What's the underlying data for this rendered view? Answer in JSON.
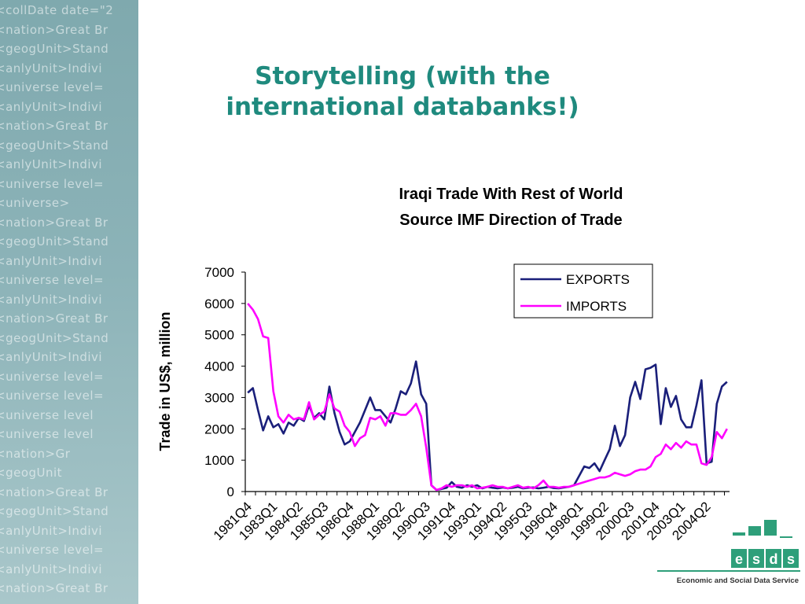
{
  "slide": {
    "title_line1": "Storytelling (with the",
    "title_line2": "international databanks!)",
    "background_code_lines": [
      "<collDate date=\"2",
      "<nation>Great Br",
      "<geogUnit>Stand",
      "<anlyUnit>Indivi",
      "<universe level=",
      "<anlyUnit>Indivi",
      "<nation>Great Br",
      "<geogUnit>Stand",
      "<anlyUnit>Indivi",
      "<universe level=",
      "<universe>",
      "<nation>Great Br",
      "<geogUnit>Stand",
      "<anlyUnit>Indivi",
      "<universe level=",
      "<anlyUnit>Indivi",
      "<nation>Great Br",
      "<geogUnit>Stand",
      "<anlyUnit>Indivi",
      "<universe level=",
      "<universe level=",
      "<universe level",
      "<universe level",
      "<nation>Gr",
      "<geogUnit",
      "<nation>Great Br",
      "<geogUnit>Stand",
      "<anlyUnit>Indivi",
      "<universe level=",
      "<anlyUnit>Indivi",
      "<nation>Great Br"
    ]
  },
  "colors": {
    "title": "#1f8a7e",
    "exports": "#1a1f7a",
    "imports": "#ff00ff",
    "logo_green": "#2e9f7a"
  },
  "logo": {
    "letters": [
      "e",
      "s",
      "d",
      "s"
    ],
    "caption": "Economic and Social Data Service"
  },
  "chart_data": {
    "type": "line",
    "title": "Iraqi Trade With Rest of World",
    "subtitle": "Source IMF Direction of Trade",
    "xlabel": "",
    "ylabel": "Trade in US$, million",
    "ylim": [
      0,
      7000
    ],
    "yticks": [
      0,
      1000,
      2000,
      3000,
      4000,
      5000,
      6000,
      7000
    ],
    "grid": false,
    "legend": "top-right",
    "x_start": "1981Q4",
    "x_tick_labels": [
      "1981Q4",
      "1983Q1",
      "1984Q2",
      "1985Q3",
      "1986Q4",
      "1988Q1",
      "1989Q2",
      "1990Q3",
      "1991Q4",
      "1993Q1",
      "1994Q2",
      "1995Q3",
      "1996Q4",
      "1998Q1",
      "1999Q2",
      "2000Q3",
      "2001Q4",
      "2003Q1",
      "2004Q2"
    ],
    "series": [
      {
        "name": "EXPORTS",
        "values": [
          3150,
          3300,
          2600,
          1950,
          2400,
          2050,
          2150,
          1850,
          2200,
          2100,
          2350,
          2250,
          2750,
          2350,
          2500,
          2300,
          3350,
          2500,
          1900,
          1500,
          1600,
          1900,
          2200,
          2600,
          3000,
          2600,
          2600,
          2400,
          2200,
          2650,
          3200,
          3100,
          3450,
          4150,
          3100,
          2800,
          200,
          50,
          80,
          120,
          300,
          150,
          120,
          200,
          150,
          200,
          100,
          150,
          120,
          100,
          130,
          100,
          120,
          150,
          100,
          120,
          130,
          100,
          120,
          150,
          110,
          100,
          130,
          150,
          200,
          500,
          800,
          750,
          900,
          650,
          1000,
          1350,
          2100,
          1450,
          1800,
          3000,
          3500,
          2950,
          3900,
          3950,
          4050,
          2150,
          3300,
          2700,
          3050,
          2300,
          2050,
          2050,
          2750,
          3550,
          900,
          950,
          2800,
          3350,
          3500
        ]
      },
      {
        "name": "IMPORTS",
        "values": [
          6000,
          5800,
          5500,
          4950,
          4900,
          3200,
          2400,
          2200,
          2450,
          2300,
          2350,
          2300,
          2850,
          2300,
          2450,
          2550,
          3100,
          2650,
          2550,
          2100,
          1900,
          1450,
          1700,
          1800,
          2350,
          2300,
          2400,
          2100,
          2500,
          2500,
          2450,
          2450,
          2600,
          2800,
          2400,
          1400,
          200,
          50,
          100,
          200,
          150,
          200,
          200,
          150,
          200,
          100,
          120,
          150,
          200,
          150,
          150,
          100,
          150,
          200,
          120,
          150,
          100,
          200,
          350,
          150,
          150,
          120,
          150,
          150,
          200,
          250,
          300,
          350,
          400,
          450,
          450,
          500,
          600,
          550,
          500,
          550,
          650,
          700,
          700,
          800,
          1100,
          1200,
          1500,
          1350,
          1550,
          1400,
          1600,
          1500,
          1500,
          900,
          850,
          1100,
          1900,
          1700,
          2000
        ]
      }
    ]
  }
}
